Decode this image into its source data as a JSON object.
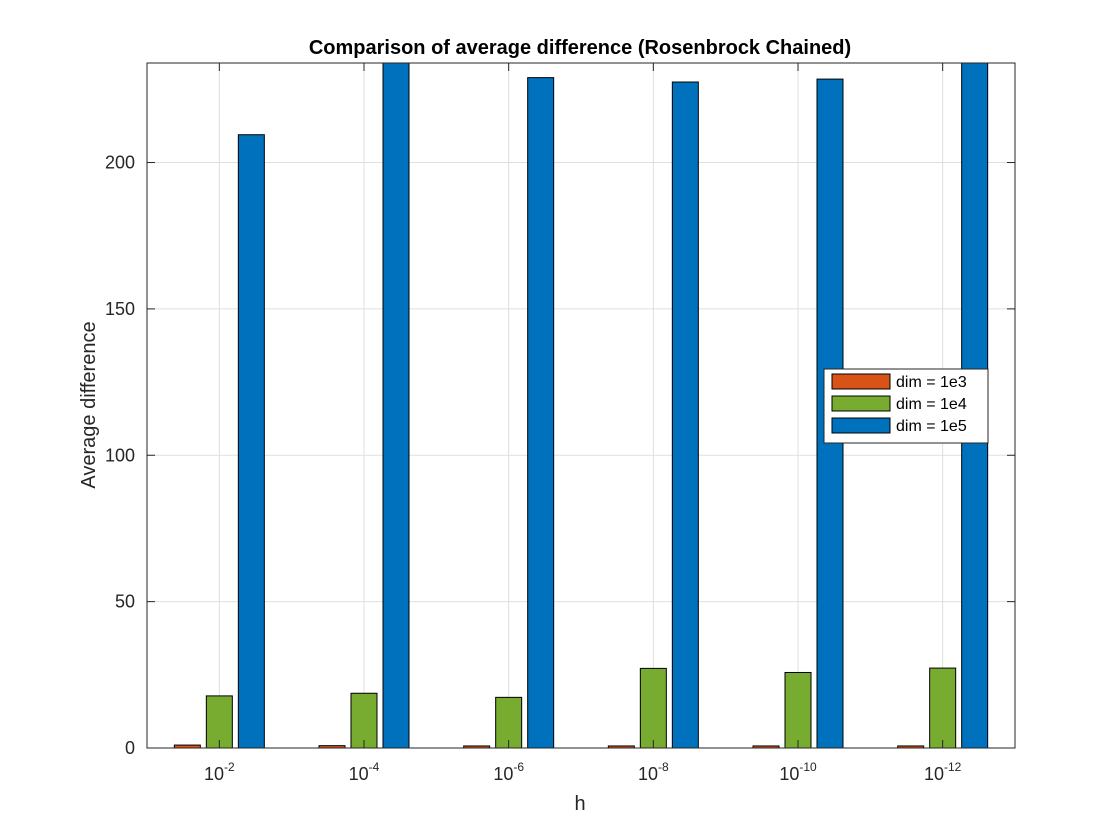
{
  "chart_data": {
    "type": "bar",
    "title": "Comparison of average difference (Rosenbrock Chained)",
    "xlabel": "h",
    "ylabel": "Average difference",
    "categories": [
      {
        "base": "10",
        "exp": "-2"
      },
      {
        "base": "10",
        "exp": "-4"
      },
      {
        "base": "10",
        "exp": "-6"
      },
      {
        "base": "10",
        "exp": "-8"
      },
      {
        "base": "10",
        "exp": "-10"
      },
      {
        "base": "10",
        "exp": "-12"
      }
    ],
    "series": [
      {
        "name": "dim = 1e3",
        "color": "#D95319",
        "values": [
          1.0,
          0.8,
          0.7,
          0.7,
          0.7,
          0.7
        ]
      },
      {
        "name": "dim = 1e4",
        "color": "#77AC30",
        "values": [
          17.8,
          18.7,
          17.3,
          27.2,
          25.8,
          27.3
        ]
      },
      {
        "name": "dim = 1e5",
        "color": "#0072BD",
        "values": [
          209.5,
          234,
          229,
          227.5,
          228.5,
          234
        ]
      }
    ],
    "ylim": [
      0,
      234
    ],
    "yticks": [
      0,
      50,
      100,
      150,
      200
    ],
    "grid": true,
    "legend": "right"
  }
}
